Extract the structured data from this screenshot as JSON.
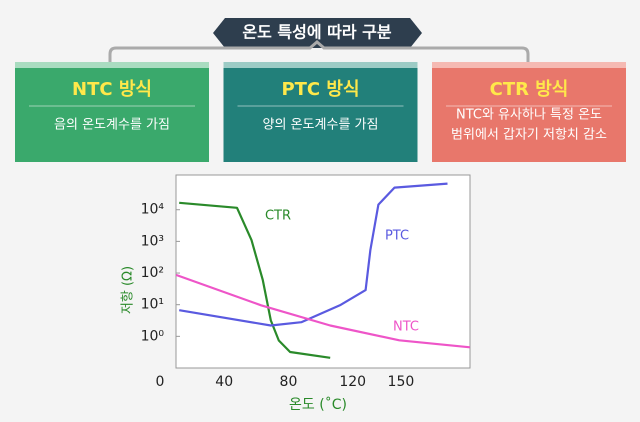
{
  "header": {
    "title": "온도 특성에 따라 구분"
  },
  "boxes": [
    {
      "title": "NTC 방식",
      "lines": [
        "음의 온도계수를 가짐"
      ]
    },
    {
      "title": "PTC 방식",
      "lines": [
        "양의 온도계수를 가짐"
      ]
    },
    {
      "title": "CTR 방식",
      "lines": [
        "NTC와 유사하나 특정 온도",
        "범위에서 갑자기 저항치 감소"
      ]
    }
  ],
  "chart_data": {
    "type": "line",
    "log_y": true,
    "xlabel": "온도 (˚C)",
    "ylabel": "저항 (Ω)",
    "xlim": [
      10,
      193
    ],
    "xticks": [
      0,
      40,
      80,
      120,
      150
    ],
    "ylim": [
      0.1,
      125000
    ],
    "yticks": [
      {
        "value": 10000,
        "label": "10⁴"
      },
      {
        "value": 1000,
        "label": "10³"
      },
      {
        "value": 100,
        "label": "10²"
      },
      {
        "value": 10,
        "label": "10¹"
      },
      {
        "value": 1,
        "label": "10⁰"
      }
    ],
    "series": [
      {
        "name": "CTR",
        "color": "#2a8a2a",
        "x": [
          12,
          48,
          57,
          64,
          69,
          74,
          81,
          106
        ],
        "values": [
          16600,
          11500,
          1100,
          60,
          3.2,
          0.74,
          0.32,
          0.21
        ]
      },
      {
        "name": "PTC",
        "color": "#5a5ae0",
        "x": [
          12,
          69,
          88,
          112,
          128,
          131,
          136,
          146,
          179
        ],
        "values": [
          6.7,
          2.2,
          2.8,
          9.6,
          29,
          540,
          14500,
          50000,
          67000
        ]
      },
      {
        "name": "NTC",
        "color": "#ee55c8",
        "x": [
          10,
          63,
          106,
          149,
          193
        ],
        "values": [
          87,
          9.6,
          2.2,
          0.75,
          0.45
        ]
      }
    ]
  }
}
